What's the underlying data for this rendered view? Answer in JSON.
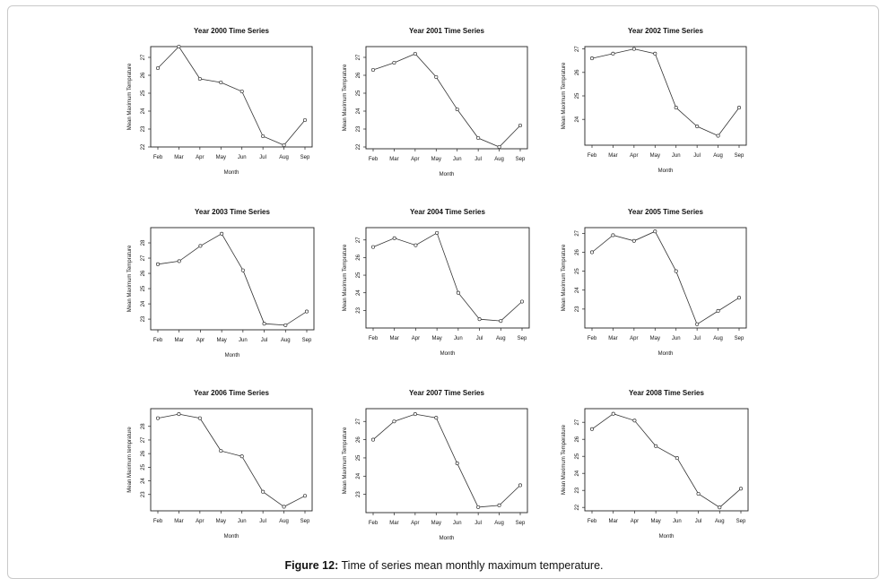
{
  "caption": {
    "label": "Figure 12:",
    "text": "Time of series mean monthly maximum temperature."
  },
  "colors": {
    "line": "#333333",
    "frame": "#222222",
    "text": "#111111"
  },
  "chart_data": [
    {
      "type": "line",
      "title": "Year 2000 Time Series",
      "xlabel": "Month",
      "ylabel": "Mean Maximum Temprature",
      "categories": [
        "Feb",
        "Mar",
        "Apr",
        "May",
        "Jun",
        "Jul",
        "Aug",
        "Sep"
      ],
      "values": [
        26.4,
        27.6,
        25.8,
        25.6,
        25.1,
        22.6,
        22.1,
        23.5
      ],
      "ylim": [
        22,
        27.6
      ],
      "yticks": [
        22,
        23,
        24,
        25,
        26,
        27
      ]
    },
    {
      "type": "line",
      "title": "Year 2001 Time Series",
      "xlabel": "Month",
      "ylabel": "Mean Maximum Temprature",
      "categories": [
        "Feb",
        "Mar",
        "Apr",
        "May",
        "Jun",
        "Jul",
        "Aug",
        "Sep"
      ],
      "values": [
        26.3,
        26.7,
        27.2,
        25.9,
        24.1,
        22.5,
        22.0,
        23.2
      ],
      "ylim": [
        21.9,
        27.6
      ],
      "yticks": [
        22,
        23,
        24,
        25,
        26,
        27
      ]
    },
    {
      "type": "line",
      "title": "Year 2002 Time Series",
      "xlabel": "Month",
      "ylabel": "Mean Maximum Temprature",
      "categories": [
        "Feb",
        "Mar",
        "Apr",
        "May",
        "Jun",
        "Jul",
        "Aug",
        "Sep"
      ],
      "values": [
        26.6,
        26.8,
        27.0,
        26.8,
        24.5,
        23.7,
        23.3,
        24.5
      ],
      "ylim": [
        22.9,
        27.1
      ],
      "yticks": [
        24,
        25,
        26,
        27
      ]
    },
    {
      "type": "line",
      "title": "Year 2003 Time Series",
      "xlabel": "Month",
      "ylabel": "Mean Maximum Temprature",
      "categories": [
        "Feb",
        "Mar",
        "Apr",
        "May",
        "Jun",
        "Jul",
        "Aug",
        "Sep"
      ],
      "values": [
        26.6,
        26.8,
        27.8,
        28.6,
        26.2,
        22.7,
        22.6,
        23.5
      ],
      "ylim": [
        22.3,
        29.0
      ],
      "yticks": [
        23,
        24,
        25,
        26,
        27,
        28
      ]
    },
    {
      "type": "line",
      "title": "Year 2004 Time Series",
      "xlabel": "Month",
      "ylabel": "Mean Maximum Temprature",
      "categories": [
        "Feb",
        "Mar",
        "Apr",
        "May",
        "Jun",
        "Jul",
        "Aug",
        "Sep"
      ],
      "values": [
        26.6,
        27.1,
        26.7,
        27.4,
        24.0,
        22.5,
        22.4,
        23.5
      ],
      "ylim": [
        22.0,
        27.7
      ],
      "yticks": [
        23,
        24,
        25,
        26,
        27
      ]
    },
    {
      "type": "line",
      "title": "Year 2005 Time Series",
      "xlabel": "Month",
      "ylabel": "Mean Maximum Temprature",
      "categories": [
        "Feb",
        "Mar",
        "Apr",
        "May",
        "Jun",
        "Jul",
        "Aug",
        "Sep"
      ],
      "values": [
        26.0,
        26.9,
        26.6,
        27.1,
        25.0,
        22.2,
        22.9,
        23.6
      ],
      "ylim": [
        22.0,
        27.3
      ],
      "yticks": [
        23,
        24,
        25,
        26,
        27
      ]
    },
    {
      "type": "line",
      "title": "Year 2006 Time Series",
      "xlabel": "Month",
      "ylabel": "Mean Maximum temprature",
      "categories": [
        "Feb",
        "Mar",
        "Apr",
        "May",
        "Jun",
        "Jul",
        "Aug",
        "Sep"
      ],
      "values": [
        28.6,
        28.9,
        28.6,
        26.2,
        25.8,
        23.2,
        22.1,
        22.9
      ],
      "ylim": [
        21.8,
        29.3
      ],
      "yticks": [
        23,
        24,
        25,
        26,
        27,
        28
      ]
    },
    {
      "type": "line",
      "title": "Year 2007 Time Series",
      "xlabel": "Month",
      "ylabel": "Mean Maximum Temprature",
      "categories": [
        "Feb",
        "Mar",
        "Apr",
        "May",
        "Jun",
        "Jul",
        "Aug",
        "Sep"
      ],
      "values": [
        26.0,
        27.0,
        27.4,
        27.2,
        24.7,
        22.3,
        22.4,
        23.5
      ],
      "ylim": [
        22.0,
        27.7
      ],
      "yticks": [
        23,
        24,
        25,
        26,
        27
      ]
    },
    {
      "type": "line",
      "title": "Year 2008 Time Series",
      "xlabel": "Month",
      "ylabel": "Mean Maximum Temperature",
      "categories": [
        "Feb",
        "Mar",
        "Apr",
        "May",
        "Jun",
        "Jul",
        "Aug",
        "Sep"
      ],
      "values": [
        26.6,
        27.5,
        27.1,
        25.6,
        24.9,
        22.8,
        22.0,
        23.1
      ],
      "ylim": [
        21.8,
        27.8
      ],
      "yticks": [
        22,
        23,
        24,
        25,
        26,
        27
      ]
    }
  ]
}
